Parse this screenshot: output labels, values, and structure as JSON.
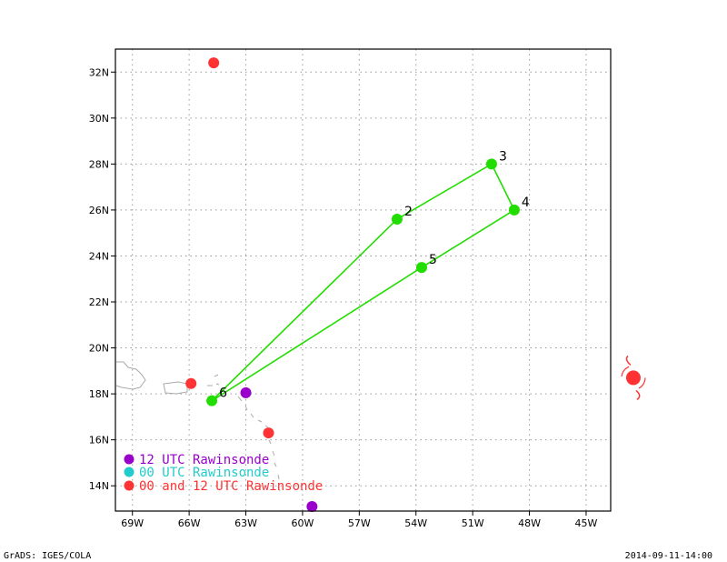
{
  "map": {
    "lon_ticks": [
      {
        "lon": -69,
        "label": "69W"
      },
      {
        "lon": -66,
        "label": "66W"
      },
      {
        "lon": -63,
        "label": "63W"
      },
      {
        "lon": -60,
        "label": "60W"
      },
      {
        "lon": -57,
        "label": "57W"
      },
      {
        "lon": -54,
        "label": "54W"
      },
      {
        "lon": -51,
        "label": "51W"
      },
      {
        "lon": -48,
        "label": "48W"
      },
      {
        "lon": -45,
        "label": "45W"
      }
    ],
    "lat_ticks": [
      {
        "lat": 14,
        "label": "14N"
      },
      {
        "lat": 16,
        "label": "16N"
      },
      {
        "lat": 18,
        "label": "18N"
      },
      {
        "lat": 20,
        "label": "20N"
      },
      {
        "lat": 22,
        "label": "22N"
      },
      {
        "lat": 24,
        "label": "24N"
      },
      {
        "lat": 26,
        "label": "26N"
      },
      {
        "lat": 28,
        "label": "28N"
      },
      {
        "lat": 30,
        "label": "30N"
      },
      {
        "lat": 32,
        "label": "32N"
      }
    ],
    "lon_range": [
      -69.9,
      -43.7
    ],
    "lat_range": [
      12.9,
      33.0
    ],
    "grid": true
  },
  "track": {
    "color": "#22dd00",
    "points": [
      {
        "label": "6",
        "lon": -64.8,
        "lat": 17.7
      },
      {
        "label": "2",
        "lon": -55.0,
        "lat": 25.6
      },
      {
        "label": "3",
        "lon": -50.0,
        "lat": 28.0
      },
      {
        "label": "4",
        "lon": -48.8,
        "lat": 26.0
      },
      {
        "label": "5",
        "lon": -53.7,
        "lat": 23.5
      },
      {
        "label": "",
        "lon": -64.8,
        "lat": 17.7
      }
    ]
  },
  "stations": [
    {
      "type": "both",
      "lon": -64.7,
      "lat": 32.4
    },
    {
      "type": "both",
      "lon": -65.9,
      "lat": 18.45
    },
    {
      "type": "both",
      "lon": -61.8,
      "lat": 16.3
    },
    {
      "type": "12utc",
      "lon": -63.0,
      "lat": 18.05
    },
    {
      "type": "12utc",
      "lon": -59.5,
      "lat": 13.1
    }
  ],
  "storm_symbol": {
    "lon": -42.5,
    "lat": 18.7,
    "color": "#ff3333"
  },
  "legend": [
    {
      "label": "12 UTC Rawinsonde",
      "color": "#9900cc"
    },
    {
      "label": "00 UTC Rawinsonde",
      "color": "#22cccc"
    },
    {
      "label": "00 and 12 UTC Rawinsonde",
      "color": "#ff3333"
    }
  ],
  "colors": {
    "both": "#ff3333",
    "12utc": "#9900cc",
    "00utc": "#22cccc",
    "coast": "#aaaaaa"
  },
  "footer": {
    "left": "GrADS: IGES/COLA",
    "right": "2014-09-11-14:00"
  }
}
